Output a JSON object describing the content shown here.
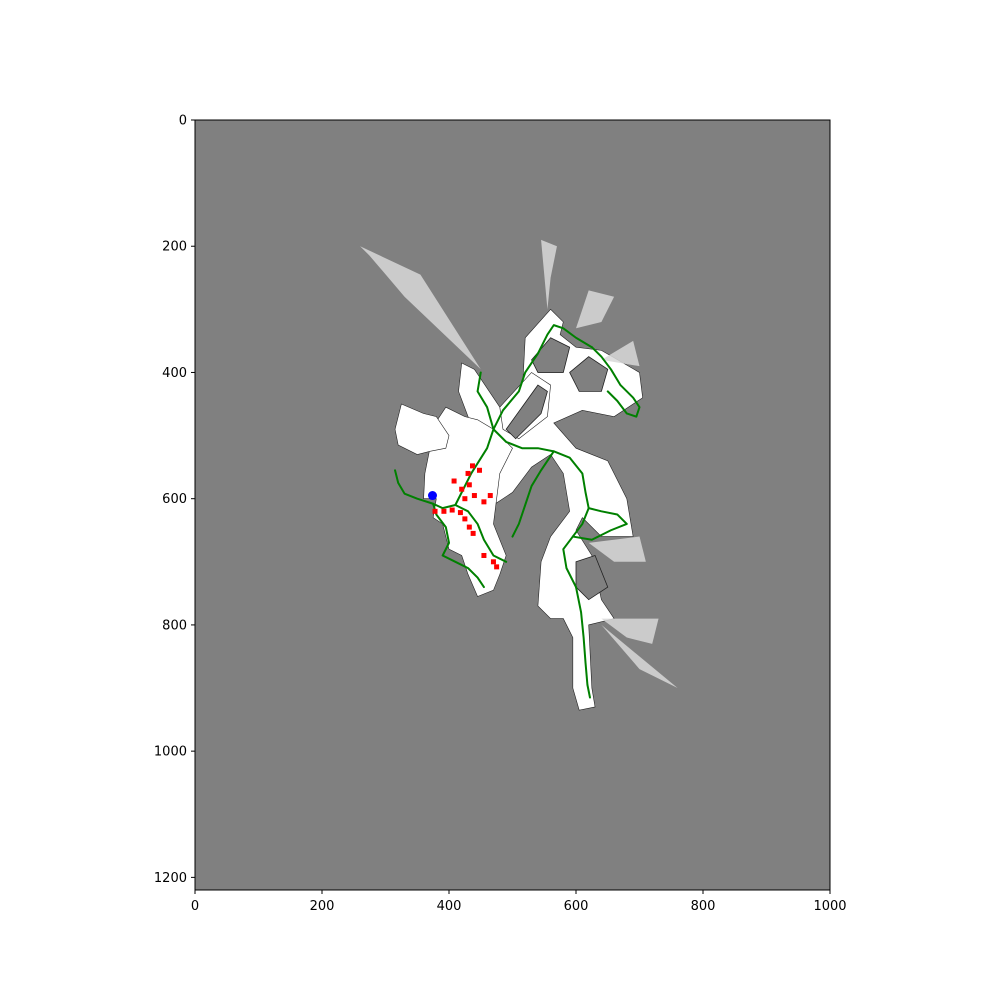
{
  "chart_data": {
    "type": "scatter",
    "title": "",
    "xlabel": "",
    "ylabel": "",
    "xlim": [
      0,
      1000
    ],
    "ylim": [
      1220,
      0
    ],
    "y_axis_inverted": true,
    "x_ticks": [
      0,
      200,
      400,
      600,
      800,
      1000
    ],
    "y_ticks": [
      0,
      200,
      400,
      600,
      800,
      1000,
      1200
    ],
    "x_tick_labels": [
      "0",
      "200",
      "400",
      "600",
      "800",
      "1000"
    ],
    "y_tick_labels": [
      "0",
      "200",
      "400",
      "600",
      "800",
      "1000",
      "1200"
    ],
    "background_color": "#808080",
    "free_space_color": "#ffffff",
    "path_color": "#008000",
    "frontier_color": "#ff0000",
    "robot_color": "#0000ff",
    "robot_position": [
      374,
      595
    ],
    "series": [
      {
        "kind": "path",
        "values": [
          [
            450,
            400
          ],
          [
            445,
            430
          ],
          [
            460,
            455
          ],
          [
            470,
            490
          ],
          [
            460,
            520
          ],
          [
            435,
            560
          ],
          [
            420,
            590
          ],
          [
            410,
            610
          ],
          [
            390,
            615
          ],
          [
            375,
            608
          ],
          [
            350,
            600
          ],
          [
            330,
            592
          ],
          [
            320,
            575
          ],
          [
            315,
            555
          ]
        ]
      },
      {
        "kind": "path",
        "values": [
          [
            470,
            490
          ],
          [
            485,
            460
          ],
          [
            510,
            430
          ],
          [
            520,
            400
          ],
          [
            540,
            370
          ],
          [
            555,
            340
          ],
          [
            565,
            325
          ],
          [
            580,
            330
          ],
          [
            600,
            345
          ],
          [
            625,
            360
          ]
        ]
      },
      {
        "kind": "path",
        "values": [
          [
            625,
            360
          ],
          [
            640,
            375
          ],
          [
            655,
            395
          ],
          [
            670,
            420
          ],
          [
            690,
            440
          ],
          [
            700,
            455
          ],
          [
            695,
            470
          ],
          [
            680,
            465
          ],
          [
            665,
            445
          ],
          [
            650,
            430
          ]
        ]
      },
      {
        "kind": "path",
        "values": [
          [
            470,
            490
          ],
          [
            490,
            510
          ],
          [
            515,
            520
          ],
          [
            540,
            520
          ],
          [
            565,
            525
          ],
          [
            590,
            535
          ],
          [
            610,
            560
          ],
          [
            615,
            590
          ],
          [
            620,
            615
          ],
          [
            610,
            640
          ],
          [
            595,
            660
          ],
          [
            580,
            680
          ],
          [
            585,
            710
          ],
          [
            600,
            740
          ]
        ]
      },
      {
        "kind": "path",
        "values": [
          [
            600,
            740
          ],
          [
            608,
            780
          ],
          [
            612,
            820
          ],
          [
            615,
            860
          ],
          [
            618,
            895
          ],
          [
            622,
            915
          ]
        ]
      },
      {
        "kind": "path",
        "values": [
          [
            595,
            660
          ],
          [
            625,
            665
          ],
          [
            655,
            650
          ],
          [
            680,
            640
          ],
          [
            665,
            625
          ],
          [
            640,
            620
          ],
          [
            620,
            615
          ]
        ]
      },
      {
        "kind": "path",
        "values": [
          [
            375,
            608
          ],
          [
            380,
            625
          ],
          [
            395,
            645
          ],
          [
            400,
            670
          ],
          [
            390,
            690
          ],
          [
            410,
            700
          ],
          [
            430,
            710
          ],
          [
            445,
            725
          ],
          [
            455,
            740
          ]
        ]
      },
      {
        "kind": "path",
        "values": [
          [
            410,
            610
          ],
          [
            430,
            620
          ],
          [
            445,
            640
          ],
          [
            455,
            665
          ],
          [
            470,
            690
          ],
          [
            490,
            700
          ]
        ]
      },
      {
        "kind": "path",
        "values": [
          [
            565,
            525
          ],
          [
            545,
            555
          ],
          [
            530,
            580
          ],
          [
            520,
            610
          ],
          [
            510,
            640
          ],
          [
            500,
            660
          ]
        ]
      },
      {
        "kind": "frontier",
        "values": [
          [
            378,
            620
          ],
          [
            392,
            620
          ],
          [
            405,
            618
          ],
          [
            418,
            622
          ],
          [
            425,
            632
          ],
          [
            432,
            645
          ],
          [
            438,
            655
          ],
          [
            425,
            600
          ],
          [
            420,
            585
          ],
          [
            432,
            578
          ],
          [
            440,
            595
          ],
          [
            455,
            605
          ],
          [
            465,
            595
          ],
          [
            430,
            560
          ],
          [
            437,
            548
          ],
          [
            448,
            555
          ],
          [
            408,
            572
          ],
          [
            455,
            690
          ],
          [
            470,
            700
          ],
          [
            475,
            708
          ]
        ]
      }
    ]
  }
}
